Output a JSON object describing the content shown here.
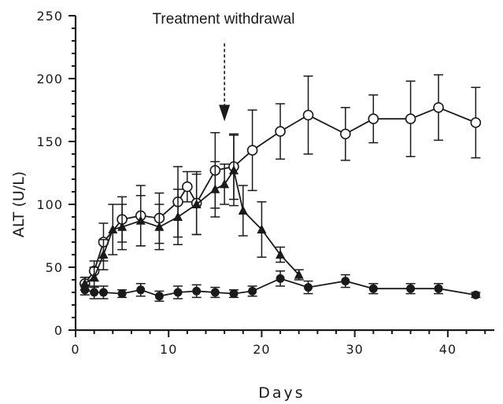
{
  "chart_data": {
    "type": "line",
    "title": "",
    "xlabel": "Days",
    "ylabel": "ALT (U/L)",
    "xlim": [
      0,
      45
    ],
    "ylim": [
      0,
      250
    ],
    "x_ticks": [
      0,
      10,
      20,
      30,
      40
    ],
    "y_ticks": [
      0,
      50,
      100,
      150,
      200,
      250
    ],
    "grid": false,
    "legend": "none",
    "annotation": {
      "text": "Treatment withdrawal",
      "x": 16,
      "arrow_from_y": 228,
      "arrow_to_y": 166
    },
    "series": [
      {
        "name": "open-circle",
        "marker": "open-circle",
        "x": [
          1,
          2,
          3,
          5,
          7,
          9,
          11,
          12,
          13,
          15,
          17,
          19,
          22,
          25,
          29,
          32,
          36,
          39,
          43
        ],
        "values": [
          37,
          47,
          70,
          88,
          91,
          89,
          102,
          114,
          101,
          127,
          130,
          143,
          158,
          171,
          156,
          168,
          168,
          177,
          165
        ],
        "err": [
          5,
          8,
          15,
          18,
          24,
          20,
          28,
          12,
          25,
          30,
          26,
          32,
          22,
          31,
          21,
          19,
          30,
          26,
          28
        ]
      },
      {
        "name": "filled-triangle",
        "marker": "filled-triangle",
        "x": [
          1,
          2,
          3,
          4,
          5,
          7,
          9,
          11,
          13,
          15,
          16,
          17,
          18,
          20,
          22,
          24
        ],
        "values": [
          37,
          42,
          60,
          80,
          82,
          87,
          82,
          90,
          100,
          112,
          116,
          127,
          95,
          80,
          60,
          44
        ],
        "err": [
          5,
          8,
          12,
          20,
          18,
          20,
          18,
          22,
          24,
          22,
          16,
          28,
          20,
          22,
          6,
          4
        ]
      },
      {
        "name": "filled-circle",
        "marker": "filled-circle",
        "x": [
          1,
          2,
          3,
          5,
          7,
          9,
          11,
          13,
          15,
          17,
          19,
          22,
          25,
          29,
          32,
          36,
          39,
          43
        ],
        "values": [
          32,
          30,
          30,
          29,
          32,
          27,
          30,
          31,
          30,
          29,
          31,
          41,
          34,
          39,
          33,
          33,
          33,
          28
        ],
        "err": [
          4,
          5,
          5,
          3,
          5,
          4,
          5,
          5,
          4,
          3,
          4,
          6,
          5,
          5,
          4,
          4,
          4,
          2
        ]
      }
    ]
  }
}
